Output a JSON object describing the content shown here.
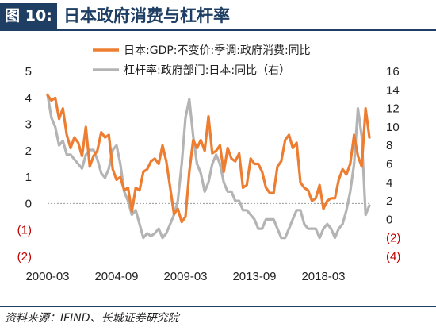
{
  "header": {
    "figure_label": "图 10:",
    "title": "日本政府消费与杠杆率"
  },
  "source": {
    "text": "资料来源：IFIND、长城证券研究院"
  },
  "colors": {
    "orange": "#ed7d31",
    "gray": "#b4b4b4",
    "navy": "#1f3e63",
    "negative_label": "#c00000"
  },
  "chart_data": {
    "type": "line",
    "title": "",
    "legend_placement": "top-right",
    "grid": false,
    "x_ticks": [
      "2000-03",
      "2004-09",
      "2009-03",
      "2013-09",
      "2018-03"
    ],
    "xlim": [
      "2000-03",
      "2021-03"
    ],
    "y_left": {
      "lim": [
        -2,
        5
      ],
      "ticks": [
        -2,
        -1,
        0,
        1,
        2,
        3,
        4,
        5
      ],
      "tick_labels": [
        "(2)",
        "(1)",
        "0",
        "1",
        "2",
        "3",
        "4",
        "5"
      ]
    },
    "y_right": {
      "lim": [
        -4,
        16
      ],
      "ticks": [
        -4,
        -2,
        0,
        2,
        4,
        6,
        8,
        10,
        12,
        14,
        16
      ],
      "tick_labels": [
        "(4)",
        "(2)",
        "0",
        "2",
        "4",
        "6",
        "8",
        "10",
        "12",
        "14",
        "16"
      ]
    },
    "series": [
      {
        "name": "日本:GDP:不变价:季调:政府消费:同比",
        "axis": "left",
        "color": "#ed7d31",
        "x": [
          "2000-03",
          "2000-06",
          "2000-09",
          "2000-12",
          "2001-03",
          "2001-06",
          "2001-09",
          "2001-12",
          "2002-03",
          "2002-06",
          "2002-09",
          "2002-12",
          "2003-03",
          "2003-06",
          "2003-09",
          "2003-12",
          "2004-03",
          "2004-06",
          "2004-09",
          "2004-12",
          "2005-03",
          "2005-06",
          "2005-09",
          "2005-12",
          "2006-03",
          "2006-06",
          "2006-09",
          "2006-12",
          "2007-03",
          "2007-06",
          "2007-09",
          "2007-12",
          "2008-03",
          "2008-06",
          "2008-09",
          "2008-12",
          "2009-03",
          "2009-06",
          "2009-09",
          "2009-12",
          "2010-03",
          "2010-06",
          "2010-09",
          "2010-12",
          "2011-03",
          "2011-06",
          "2011-09",
          "2011-12",
          "2012-03",
          "2012-06",
          "2012-09",
          "2012-12",
          "2013-03",
          "2013-06",
          "2013-09",
          "2013-12",
          "2014-03",
          "2014-06",
          "2014-09",
          "2014-12",
          "2015-03",
          "2015-06",
          "2015-09",
          "2015-12",
          "2016-03",
          "2016-06",
          "2016-09",
          "2016-12",
          "2017-03",
          "2017-06",
          "2017-09",
          "2017-12",
          "2018-03",
          "2018-06",
          "2018-09",
          "2018-12",
          "2019-03",
          "2019-06",
          "2019-09",
          "2019-12",
          "2020-03",
          "2020-06",
          "2020-09",
          "2020-12",
          "2021-03"
        ],
        "values": [
          4.1,
          3.9,
          4.0,
          3.2,
          3.6,
          2.6,
          2.1,
          2.5,
          2.3,
          1.8,
          2.9,
          1.4,
          1.8,
          2.0,
          2.7,
          2.5,
          2.6,
          1.3,
          0.9,
          1.0,
          0.5,
          0.6,
          -0.3,
          0.6,
          0.5,
          1.2,
          1.3,
          1.6,
          1.7,
          1.5,
          2.2,
          1.6,
          0.6,
          -0.4,
          -0.2,
          -0.7,
          -0.5,
          1.2,
          2.4,
          2.1,
          2.4,
          2.0,
          3.3,
          1.9,
          2.0,
          2.2,
          1.2,
          2.1,
          1.7,
          1.6,
          1.9,
          0.6,
          0.7,
          1.7,
          1.5,
          1.5,
          1.2,
          0.6,
          0.4,
          0.4,
          1.4,
          1.6,
          2.4,
          2.6,
          2.1,
          2.3,
          0.8,
          0.6,
          0.5,
          0.1,
          0.2,
          0.7,
          -0.2,
          0.1,
          0.2,
          0.2,
          0.9,
          1.3,
          1.1,
          1.5,
          2.6,
          1.8,
          1.4,
          3.6,
          2.5
        ]
      },
      {
        "name": "杠杆率:政府部门:日本:同比（右）",
        "axis": "right",
        "color": "#b4b4b4",
        "x": [
          "2000-03",
          "2000-06",
          "2000-09",
          "2000-12",
          "2001-03",
          "2001-06",
          "2001-09",
          "2001-12",
          "2002-03",
          "2002-06",
          "2002-09",
          "2002-12",
          "2003-03",
          "2003-06",
          "2003-09",
          "2003-12",
          "2004-03",
          "2004-06",
          "2004-09",
          "2004-12",
          "2005-03",
          "2005-06",
          "2005-09",
          "2005-12",
          "2006-03",
          "2006-06",
          "2006-09",
          "2006-12",
          "2007-03",
          "2007-06",
          "2007-09",
          "2007-12",
          "2008-03",
          "2008-06",
          "2008-09",
          "2008-12",
          "2009-03",
          "2009-06",
          "2009-09",
          "2009-12",
          "2010-03",
          "2010-06",
          "2010-09",
          "2010-12",
          "2011-03",
          "2011-06",
          "2011-09",
          "2011-12",
          "2012-03",
          "2012-06",
          "2012-09",
          "2012-12",
          "2013-03",
          "2013-06",
          "2013-09",
          "2013-12",
          "2014-03",
          "2014-06",
          "2014-09",
          "2014-12",
          "2015-03",
          "2015-06",
          "2015-09",
          "2015-12",
          "2016-03",
          "2016-06",
          "2016-09",
          "2016-12",
          "2017-03",
          "2017-06",
          "2017-09",
          "2017-12",
          "2018-03",
          "2018-06",
          "2018-09",
          "2018-12",
          "2019-03",
          "2019-06",
          "2019-09",
          "2019-12",
          "2020-03",
          "2020-06",
          "2020-09",
          "2020-12",
          "2021-03"
        ],
        "values": [
          13.5,
          11.0,
          10.0,
          8.0,
          8.5,
          7.0,
          7.0,
          6.5,
          6.0,
          5.5,
          7.0,
          7.5,
          7.5,
          6.5,
          5.0,
          4.5,
          5.5,
          7.5,
          8.0,
          6.0,
          3.0,
          2.0,
          0.5,
          1.0,
          -0.5,
          -2.0,
          -1.5,
          -1.8,
          -1.5,
          -1.0,
          -2.0,
          -1.5,
          -0.5,
          0.5,
          2.0,
          6.0,
          11.0,
          13.0,
          9.0,
          6.0,
          5.0,
          3.0,
          4.0,
          6.0,
          7.0,
          6.0,
          4.0,
          3.0,
          3.0,
          2.0,
          2.0,
          1.0,
          1.0,
          0.5,
          0.0,
          -1.0,
          -1.0,
          0.0,
          0.0,
          0.0,
          -1.0,
          -2.0,
          -2.0,
          -1.0,
          0.0,
          1.0,
          1.0,
          -0.5,
          -1.0,
          -1.0,
          -1.0,
          -2.0,
          -1.0,
          -0.5,
          -1.0,
          -2.0,
          -1.0,
          -0.5,
          1.0,
          3.0,
          6.0,
          12.0,
          9.0,
          0.5,
          1.5
        ]
      }
    ]
  }
}
